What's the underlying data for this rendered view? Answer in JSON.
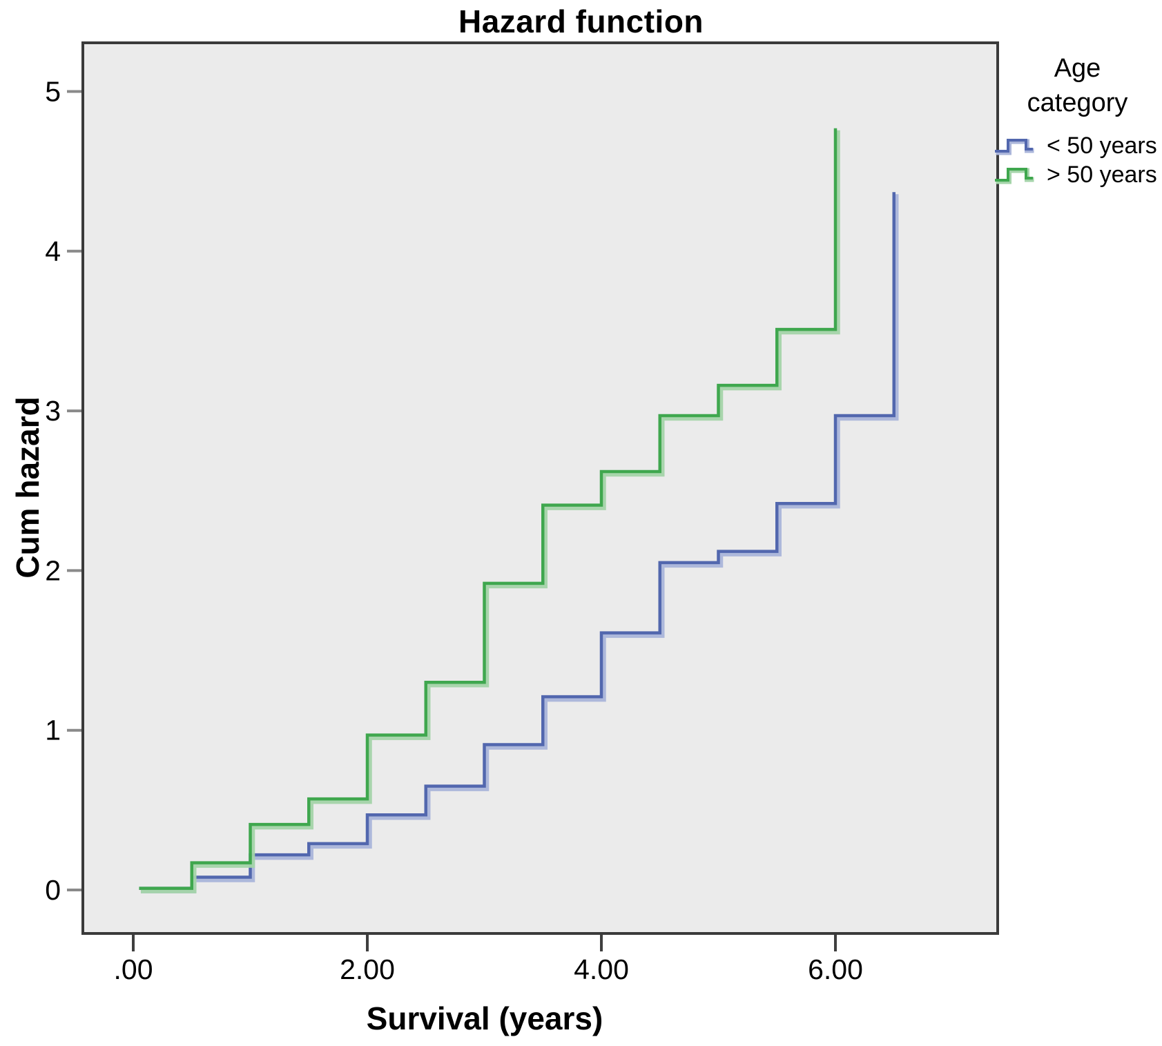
{
  "chart_data": {
    "type": "line",
    "subtype": "step-post-cumulative-hazard",
    "title": "Hazard function",
    "xlabel": "Survival (years)",
    "ylabel": "Cum hazard",
    "grid": false,
    "plot_background": "#ebebeb",
    "frame_color": "#3a3a3a",
    "xlim": [
      -0.43,
      7.39
    ],
    "ylim": [
      -0.27,
      5.3
    ],
    "x_ticks": {
      "values": [
        0,
        2,
        4,
        6
      ],
      "labels": [
        ".00",
        "2.00",
        "4.00",
        "6.00"
      ]
    },
    "y_ticks": {
      "values": [
        0,
        1,
        2,
        3,
        4,
        5
      ],
      "labels": [
        "0",
        "1",
        "2",
        "3",
        "4",
        "5"
      ]
    },
    "legend": {
      "title": "Age category",
      "position": "top-right-outside",
      "entries": [
        {
          "label": "< 50 years",
          "color": "#5267ae",
          "halo": "#aab5da"
        },
        {
          "label": "> 50 years",
          "color": "#3fa74e",
          "halo": "#a4d4a9"
        }
      ]
    },
    "series": [
      {
        "name": "< 50 years",
        "color": "#5267ae",
        "halo": "#aab5da",
        "points": [
          [
            0.05,
            0.01
          ],
          [
            0.5,
            0.08
          ],
          [
            1.0,
            0.22
          ],
          [
            1.5,
            0.29
          ],
          [
            2.0,
            0.47
          ],
          [
            2.5,
            0.65
          ],
          [
            3.0,
            0.91
          ],
          [
            3.5,
            1.21
          ],
          [
            4.0,
            1.61
          ],
          [
            4.5,
            2.05
          ],
          [
            5.0,
            2.12
          ],
          [
            5.5,
            2.42
          ],
          [
            6.0,
            2.97
          ],
          [
            6.5,
            4.37
          ]
        ]
      },
      {
        "name": "> 50 years",
        "color": "#3fa74e",
        "halo": "#a4d4a9",
        "points": [
          [
            0.05,
            0.01
          ],
          [
            0.5,
            0.17
          ],
          [
            1.0,
            0.41
          ],
          [
            1.5,
            0.57
          ],
          [
            2.0,
            0.97
          ],
          [
            2.5,
            1.3
          ],
          [
            3.0,
            1.92
          ],
          [
            3.5,
            2.41
          ],
          [
            4.0,
            2.62
          ],
          [
            4.5,
            2.97
          ],
          [
            5.0,
            3.16
          ],
          [
            5.5,
            3.51
          ],
          [
            6.0,
            4.77
          ]
        ]
      }
    ]
  }
}
